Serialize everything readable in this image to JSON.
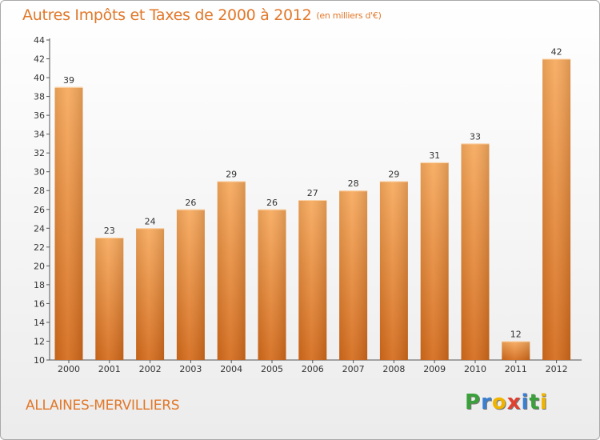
{
  "title": "Autres Impôts et Taxes de 2000 à 2012",
  "unit": "(en milliers d'€)",
  "place": "ALLAINES-MERVILLIERS",
  "logo": {
    "letters": [
      "P",
      "r",
      "o",
      "x",
      "i",
      "t",
      "i"
    ],
    "colors": [
      "#3aa03a",
      "#3a7fd0",
      "#f0b400",
      "#e04030",
      "#3a7fd0",
      "#3aa03a",
      "#f0b400"
    ]
  },
  "colors": {
    "bar_light": "#f7a95c",
    "bar_dark": "#d46a1a",
    "accent": "#e1782a"
  },
  "chart_data": {
    "type": "bar",
    "categories": [
      "2000",
      "2001",
      "2002",
      "2003",
      "2004",
      "2005",
      "2006",
      "2007",
      "2008",
      "2009",
      "2010",
      "2011",
      "2012"
    ],
    "values": [
      39,
      23,
      24,
      26,
      29,
      26,
      27,
      28,
      29,
      31,
      33,
      12,
      42
    ],
    "ylim": [
      10,
      44
    ],
    "yticks": [
      10,
      12,
      14,
      16,
      18,
      20,
      22,
      24,
      26,
      28,
      30,
      32,
      34,
      36,
      38,
      40,
      42,
      44
    ],
    "grid": false,
    "title": "Autres Impôts et Taxes de 2000 à 2012",
    "xlabel": "",
    "ylabel": ""
  }
}
